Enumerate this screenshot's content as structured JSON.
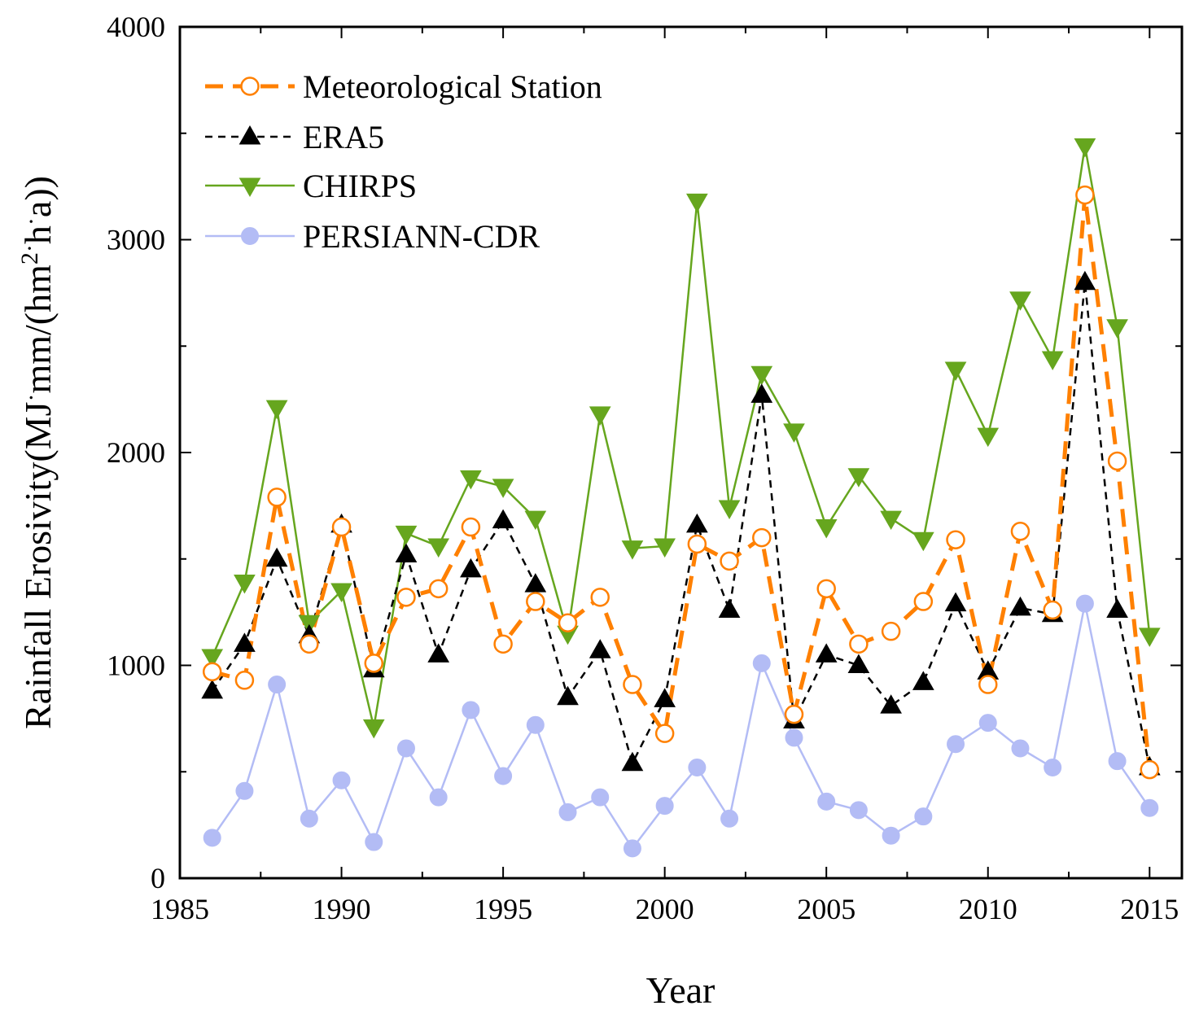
{
  "chart_data": {
    "type": "line",
    "title": "",
    "xlabel": "Year",
    "ylabel": "Rainfall Erosivity(MJ·mm/(hm²·h·a))",
    "ylabel_parts": {
      "main": "Rainfall Erosivity(MJ",
      "dot1": "·",
      "mm": "mm/(hm",
      "sup": "2",
      "dot2": "·",
      "h": "h",
      "dot3": "·",
      "end": "a))"
    },
    "xlim": [
      1985,
      2016
    ],
    "ylim": [
      0,
      4000
    ],
    "xticks": [
      1985,
      1990,
      1995,
      2000,
      2005,
      2010,
      2015
    ],
    "yticks": [
      0,
      1000,
      2000,
      3000,
      4000
    ],
    "legend_position": "top-left",
    "x": [
      1986,
      1987,
      1988,
      1989,
      1990,
      1991,
      1992,
      1993,
      1994,
      1995,
      1996,
      1997,
      1998,
      1999,
      2000,
      2001,
      2002,
      2003,
      2004,
      2005,
      2006,
      2007,
      2008,
      2009,
      2010,
      2011,
      2012,
      2013,
      2014,
      2015
    ],
    "series": [
      {
        "name": "Meteorological Station",
        "color": "#ff8000",
        "line": "dashed-thick",
        "marker": "open-circle",
        "values": [
          970,
          930,
          1790,
          1100,
          1650,
          1010,
          1320,
          1360,
          1650,
          1100,
          1300,
          1200,
          1320,
          910,
          680,
          1570,
          1490,
          1600,
          770,
          1360,
          1100,
          1160,
          1300,
          1590,
          910,
          1630,
          1260,
          3210,
          1960,
          510
        ]
      },
      {
        "name": "ERA5",
        "color": "#000000",
        "line": "dashed-thin",
        "marker": "filled-triangle-up",
        "values": [
          880,
          1100,
          1500,
          1140,
          1660,
          980,
          1520,
          1050,
          1450,
          1680,
          1380,
          850,
          1070,
          540,
          840,
          1660,
          1260,
          2270,
          740,
          1050,
          1000,
          810,
          920,
          1290,
          970,
          1270,
          1240,
          2800,
          1260,
          520
        ]
      },
      {
        "name": "CHIRPS",
        "color": "#66a61e",
        "line": "solid",
        "marker": "filled-triangle-down",
        "values": [
          1040,
          1390,
          2210,
          1200,
          1350,
          710,
          1620,
          1560,
          1880,
          1840,
          1690,
          1150,
          2180,
          1550,
          1560,
          3180,
          1740,
          2370,
          2100,
          1650,
          1890,
          1690,
          1590,
          2390,
          2080,
          2720,
          2440,
          3440,
          2590,
          1140
        ]
      },
      {
        "name": "PERSIANN-CDR",
        "color": "#b3bcf5",
        "line": "solid",
        "marker": "filled-circle",
        "values": [
          190,
          410,
          910,
          280,
          460,
          170,
          610,
          380,
          790,
          480,
          720,
          310,
          380,
          140,
          340,
          520,
          280,
          1010,
          660,
          360,
          320,
          200,
          290,
          630,
          730,
          610,
          520,
          1290,
          550,
          330
        ]
      }
    ]
  }
}
